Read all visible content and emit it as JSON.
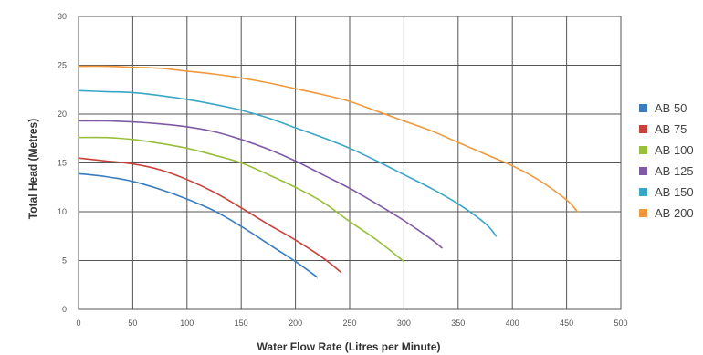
{
  "chart_data": {
    "type": "line",
    "xlabel": "Water Flow Rate (Litres per Minute)",
    "ylabel": "Total Head (Metres)",
    "xlim": [
      0,
      500
    ],
    "ylim": [
      0,
      30
    ],
    "xticks": [
      0,
      50,
      100,
      150,
      200,
      250,
      300,
      350,
      400,
      450,
      500
    ],
    "yticks": [
      0,
      5,
      10,
      15,
      20,
      25,
      30
    ],
    "grid": true,
    "legend_position": "right",
    "series": [
      {
        "name": "AB 50",
        "color": "#3a7dbf",
        "x": [
          0,
          25,
          50,
          75,
          100,
          125,
          150,
          175,
          200,
          220
        ],
        "y": [
          13.9,
          13.6,
          13.1,
          12.3,
          11.3,
          10.1,
          8.5,
          6.7,
          4.9,
          3.3
        ]
      },
      {
        "name": "AB 75",
        "color": "#c8413a",
        "x": [
          0,
          25,
          50,
          75,
          100,
          125,
          150,
          175,
          200,
          225,
          242
        ],
        "y": [
          15.5,
          15.2,
          14.9,
          14.3,
          13.3,
          12.0,
          10.4,
          8.7,
          7.1,
          5.3,
          3.8
        ]
      },
      {
        "name": "AB 100",
        "color": "#98bf3b",
        "x": [
          0,
          25,
          50,
          75,
          100,
          125,
          150,
          175,
          200,
          225,
          250,
          275,
          300
        ],
        "y": [
          17.6,
          17.6,
          17.4,
          17.0,
          16.5,
          15.8,
          15.0,
          13.8,
          12.5,
          11.0,
          9.0,
          7.1,
          4.9
        ]
      },
      {
        "name": "AB 125",
        "color": "#7e5aa4",
        "x": [
          0,
          25,
          50,
          75,
          100,
          125,
          150,
          175,
          200,
          225,
          250,
          275,
          300,
          325,
          335
        ],
        "y": [
          19.3,
          19.3,
          19.2,
          19.0,
          18.7,
          18.2,
          17.4,
          16.4,
          15.2,
          13.8,
          12.4,
          10.8,
          9.1,
          7.2,
          6.3
        ]
      },
      {
        "name": "AB 150",
        "color": "#3aa6c6",
        "x": [
          0,
          25,
          50,
          75,
          100,
          125,
          150,
          175,
          200,
          225,
          250,
          275,
          300,
          325,
          350,
          375,
          385
        ],
        "y": [
          22.4,
          22.3,
          22.2,
          21.9,
          21.5,
          21.0,
          20.4,
          19.6,
          18.6,
          17.6,
          16.5,
          15.2,
          13.8,
          12.4,
          10.8,
          8.8,
          7.5
        ]
      },
      {
        "name": "AB 200",
        "color": "#f0983c",
        "x": [
          0,
          25,
          50,
          75,
          100,
          125,
          150,
          175,
          200,
          225,
          250,
          275,
          300,
          325,
          350,
          375,
          400,
          425,
          450,
          460
        ],
        "y": [
          24.9,
          24.9,
          24.8,
          24.7,
          24.4,
          24.1,
          23.7,
          23.2,
          22.6,
          22.0,
          21.3,
          20.3,
          19.3,
          18.3,
          17.1,
          15.9,
          14.7,
          13.2,
          11.2,
          10.0
        ]
      }
    ]
  }
}
